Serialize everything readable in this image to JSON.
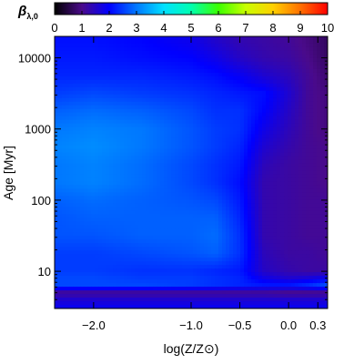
{
  "chart_data": {
    "type": "heatmap",
    "title": "",
    "xlabel": "log(Z/Z⊙)",
    "ylabel": "Age [Myr]",
    "x_scale": "linear",
    "y_scale": "log",
    "xlim": [
      -2.4,
      0.4
    ],
    "ylim": [
      3,
      20000
    ],
    "x_ticks": [
      -2.0,
      -1.0,
      -0.5,
      0.0,
      0.3
    ],
    "x_tick_labels": [
      "−2.0",
      "−1.0",
      "−0.5",
      "0.0",
      "0.3"
    ],
    "y_ticks": [
      10,
      100,
      1000,
      10000
    ],
    "y_tick_labels": [
      "10",
      "100",
      "1000",
      "10000"
    ],
    "colorbar": {
      "label": "β",
      "label_subscript": "λ,0",
      "range": [
        0,
        10
      ],
      "ticks": [
        0,
        1,
        2,
        3,
        4,
        5,
        6,
        7,
        8,
        9,
        10
      ],
      "tick_labels": [
        "0",
        "1",
        "2",
        "3",
        "4",
        "5",
        "6",
        "7",
        "8",
        "9",
        "10"
      ],
      "colormap": [
        "#000000",
        "#4a0a8a",
        "#0000ff",
        "#0078ff",
        "#00e0ff",
        "#00ffb0",
        "#3cff00",
        "#c8ff00",
        "#ffd000",
        "#ff7000",
        "#ff0000"
      ]
    },
    "z_description_grid": {
      "x": [
        -2.4,
        -2.0,
        -1.5,
        -1.0,
        -0.75,
        -0.5,
        -0.25,
        0.0,
        0.2,
        0.4
      ],
      "log_age": [
        0.48,
        0.6,
        0.7,
        0.8,
        0.9,
        1.0,
        1.25,
        1.5,
        1.75,
        2.0,
        2.25,
        2.5,
        2.75,
        3.0,
        3.25,
        3.5,
        3.75,
        4.0,
        4.3
      ],
      "values": [
        [
          1.9,
          1.9,
          1.9,
          1.9,
          1.9,
          1.9,
          1.9,
          1.9,
          1.9,
          1.9
        ],
        [
          1.6,
          1.6,
          1.6,
          1.6,
          1.6,
          1.6,
          1.6,
          1.6,
          1.6,
          1.6
        ],
        [
          1.1,
          1.1,
          1.1,
          1.1,
          1.1,
          1.1,
          1.1,
          1.0,
          1.0,
          1.0
        ],
        [
          2.6,
          2.6,
          2.6,
          2.5,
          2.4,
          2.3,
          2.2,
          2.2,
          2.4,
          2.7
        ],
        [
          2.6,
          2.6,
          2.5,
          2.5,
          2.4,
          2.3,
          1.8,
          1.6,
          1.7,
          1.9
        ],
        [
          2.5,
          2.5,
          2.4,
          2.4,
          2.3,
          2.2,
          1.5,
          1.3,
          1.2,
          1.2
        ],
        [
          2.5,
          2.5,
          2.6,
          2.7,
          2.8,
          2.4,
          1.4,
          1.2,
          1.2,
          1.1
        ],
        [
          2.7,
          2.7,
          2.8,
          2.8,
          2.9,
          2.4,
          1.3,
          1.2,
          1.1,
          1.1
        ],
        [
          2.7,
          2.8,
          2.8,
          2.8,
          2.8,
          2.3,
          1.3,
          1.2,
          1.1,
          1.1
        ],
        [
          2.8,
          2.9,
          2.8,
          2.7,
          2.6,
          2.2,
          1.3,
          1.2,
          1.1,
          1.1
        ],
        [
          3.0,
          3.1,
          2.9,
          2.6,
          2.4,
          2.1,
          1.3,
          1.2,
          1.1,
          1.0
        ],
        [
          3.0,
          3.1,
          2.9,
          2.6,
          2.4,
          2.2,
          1.4,
          1.2,
          1.1,
          1.0
        ],
        [
          3.1,
          3.2,
          3.0,
          2.7,
          2.5,
          2.3,
          1.6,
          1.3,
          1.1,
          1.0
        ],
        [
          3.0,
          3.1,
          3.0,
          2.7,
          2.5,
          2.4,
          1.8,
          1.4,
          1.1,
          0.9
        ],
        [
          2.8,
          2.9,
          2.8,
          2.6,
          2.4,
          2.4,
          2.0,
          1.5,
          1.1,
          0.9
        ],
        [
          2.5,
          2.6,
          2.5,
          2.4,
          2.3,
          2.2,
          2.1,
          1.6,
          1.1,
          0.9
        ],
        [
          2.3,
          2.3,
          2.3,
          2.2,
          2.1,
          1.9,
          1.6,
          1.4,
          1.1,
          0.8
        ],
        [
          2.2,
          2.2,
          2.1,
          2.0,
          1.8,
          1.5,
          1.3,
          1.2,
          1.0,
          0.7
        ],
        [
          2.1,
          2.1,
          2.0,
          1.8,
          1.5,
          1.3,
          1.2,
          1.1,
          0.9,
          0.7
        ]
      ]
    }
  }
}
